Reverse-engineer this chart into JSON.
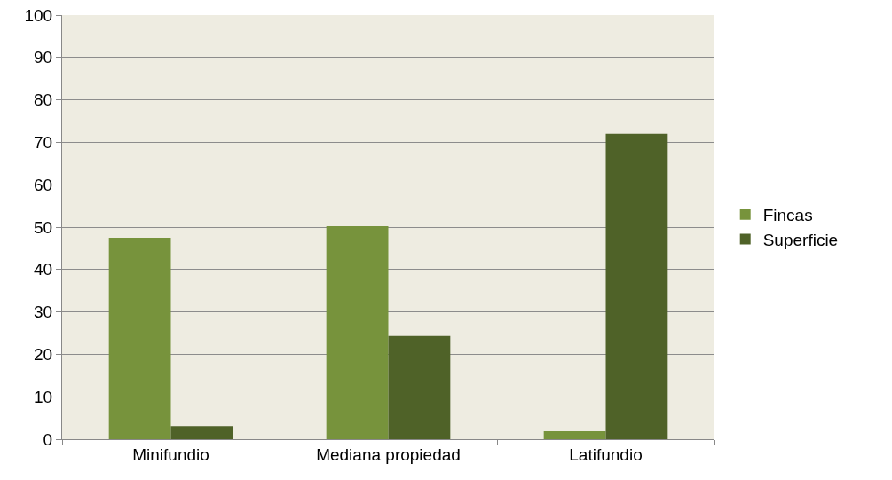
{
  "chart_data": {
    "type": "bar",
    "categories": [
      "Minifundio",
      "Mediana propiedad",
      "Latifundio"
    ],
    "series": [
      {
        "name": "Fincas",
        "color": "#77933c",
        "values": [
          47.5,
          50.2,
          1.9
        ]
      },
      {
        "name": "Superficie",
        "color": "#4f6228",
        "values": [
          3.1,
          24.3,
          72.0
        ]
      }
    ],
    "ylim": [
      0,
      100
    ],
    "yticks": [
      0,
      10,
      20,
      30,
      40,
      50,
      60,
      70,
      80,
      90,
      100
    ],
    "grid": "y",
    "legend": "right"
  }
}
